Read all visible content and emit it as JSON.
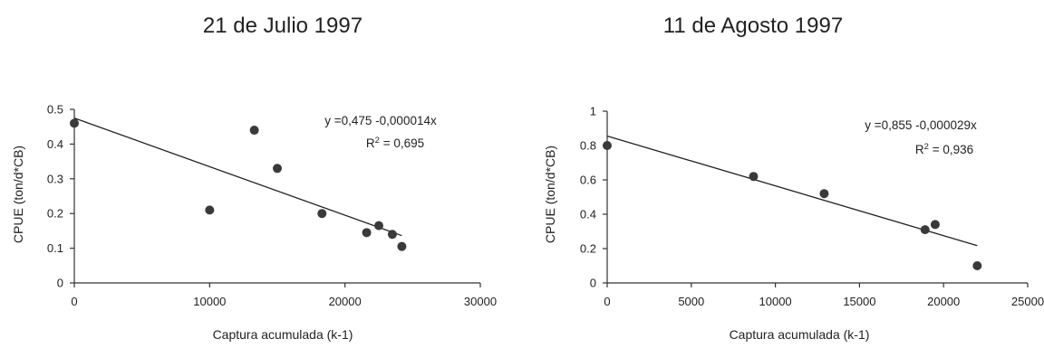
{
  "chart_data": [
    {
      "type": "scatter",
      "title": "21 de Julio 1997",
      "xlabel": "Captura acumulada (k-1)",
      "ylabel": "CPUE (ton/d*CB)",
      "xlim": [
        0,
        30000
      ],
      "ylim": [
        0,
        0.5
      ],
      "xticks": [
        0,
        10000,
        20000,
        30000
      ],
      "yticks": [
        0,
        0.1,
        0.2,
        0.3,
        0.4,
        0.5
      ],
      "xtick_labels": [
        "0",
        "10000",
        "20000",
        "30000"
      ],
      "ytick_labels": [
        "0",
        "0.1",
        "0.2",
        "0.3",
        "0.4",
        "0.5"
      ],
      "points": [
        {
          "x": 0,
          "y": 0.46
        },
        {
          "x": 10000,
          "y": 0.21
        },
        {
          "x": 13300,
          "y": 0.44
        },
        {
          "x": 15000,
          "y": 0.33
        },
        {
          "x": 18300,
          "y": 0.2
        },
        {
          "x": 21600,
          "y": 0.145
        },
        {
          "x": 22500,
          "y": 0.165
        },
        {
          "x": 23500,
          "y": 0.14
        },
        {
          "x": 24200,
          "y": 0.105
        }
      ],
      "trendline": {
        "x_start": 0,
        "x_end": 24200,
        "intercept": 0.475,
        "slope": -1.4e-05
      },
      "equation": "y =0,475 -0,000014x",
      "r2_prefix": "R",
      "r2_sup": "2",
      "r2_value": " = 0,695",
      "grid": false,
      "legend": "none"
    },
    {
      "type": "scatter",
      "title": "11 de Agosto 1997",
      "xlabel": "Captura acumulada (k-1)",
      "ylabel": "CPUE (ton/d*CB)",
      "xlim": [
        0,
        25000
      ],
      "ylim": [
        0,
        1
      ],
      "xticks": [
        0,
        5000,
        10000,
        15000,
        20000,
        25000
      ],
      "yticks": [
        0,
        0.2,
        0.4,
        0.6,
        0.8,
        1
      ],
      "xtick_labels": [
        "0",
        "5000",
        "10000",
        "15000",
        "20000",
        "25000"
      ],
      "ytick_labels": [
        "0",
        "0.2",
        "0.4",
        "0.6",
        "0.8",
        "1"
      ],
      "points": [
        {
          "x": 0,
          "y": 0.8
        },
        {
          "x": 8700,
          "y": 0.62
        },
        {
          "x": 12900,
          "y": 0.52
        },
        {
          "x": 18900,
          "y": 0.31
        },
        {
          "x": 19500,
          "y": 0.34
        },
        {
          "x": 22000,
          "y": 0.1
        }
      ],
      "trendline": {
        "x_start": 0,
        "x_end": 22000,
        "intercept": 0.855,
        "slope": -2.9e-05
      },
      "equation": "y =0,855 -0,000029x",
      "r2_prefix": "R",
      "r2_sup": "2",
      "r2_value": " = 0,936",
      "grid": false,
      "legend": "none"
    }
  ]
}
